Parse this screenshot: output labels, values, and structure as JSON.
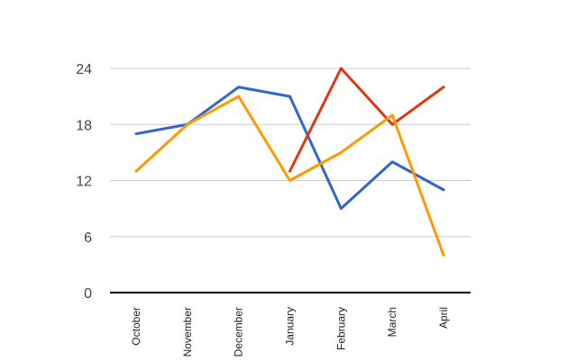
{
  "chart_data": {
    "type": "line",
    "title": "",
    "xlabel": "",
    "ylabel": "",
    "categories": [
      "October",
      "November",
      "December",
      "January",
      "February",
      "March",
      "April"
    ],
    "ylim": [
      0,
      24
    ],
    "yticks": [
      0,
      6,
      12,
      18,
      24
    ],
    "grid": true,
    "series": [
      {
        "color": "#3366cc",
        "values": [
          17,
          18,
          22,
          21,
          9,
          14,
          11
        ]
      },
      {
        "color": "#dc3912",
        "values": [
          null,
          null,
          null,
          13,
          24,
          18,
          22
        ]
      },
      {
        "color": "#ff9900",
        "values": [
          13,
          18,
          21,
          12,
          15,
          19,
          4
        ]
      }
    ]
  }
}
